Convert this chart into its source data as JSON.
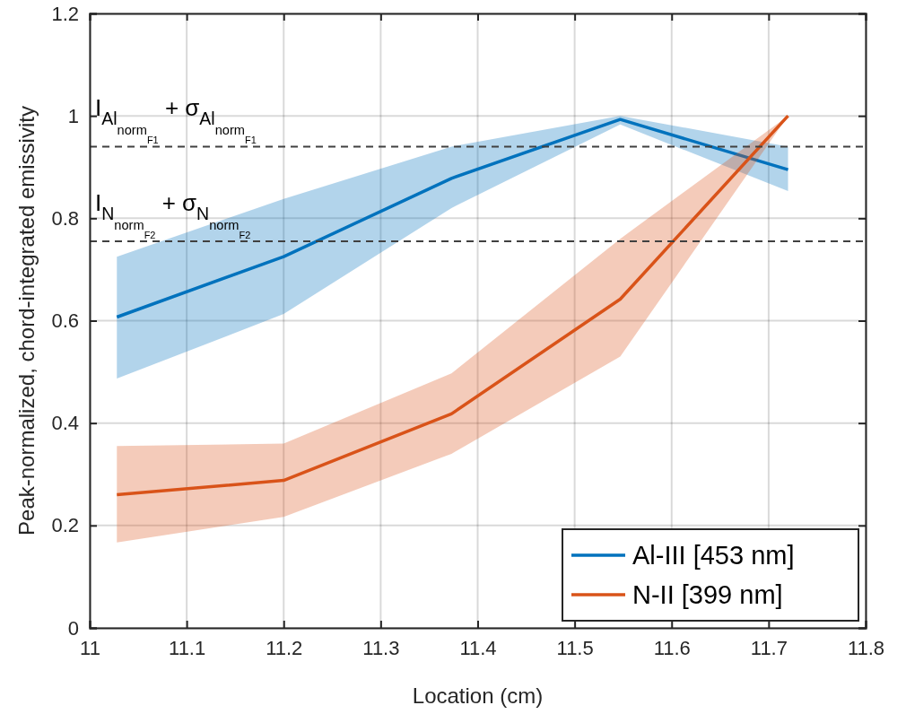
{
  "chart_data": {
    "type": "line",
    "xlabel": "Location (cm)",
    "ylabel": "Peak-normalized, chord-integrated emissivity",
    "xlim": [
      11,
      11.8
    ],
    "xticks": [
      11,
      11.1,
      11.2,
      11.3,
      11.4,
      11.5,
      11.6,
      11.7,
      11.8
    ],
    "ylim": [
      0,
      1.2
    ],
    "yticks": [
      0,
      0.2,
      0.4,
      0.6,
      0.8,
      1,
      1.2
    ],
    "grid": true,
    "legend": "bottom right",
    "x": [
      11.028,
      11.2,
      11.373,
      11.547,
      11.72
    ],
    "series": [
      {
        "name": "Al-III [453 nm]",
        "color": "#0072bd",
        "values": [
          0.607,
          0.725,
          0.878,
          0.993,
          0.895
        ],
        "lower": [
          0.487,
          0.613,
          0.82,
          0.983,
          0.853
        ],
        "upper": [
          0.725,
          0.838,
          0.94,
          1.0,
          0.94
        ]
      },
      {
        "name": "N-II [399 nm]",
        "color": "#d95319",
        "values": [
          0.26,
          0.288,
          0.418,
          0.642,
          1.0
        ],
        "lower": [
          0.167,
          0.217,
          0.34,
          0.53,
          1.0
        ],
        "upper": [
          0.355,
          0.36,
          0.497,
          0.76,
          1.0
        ]
      }
    ],
    "ref_lines": [
      {
        "axis": "y",
        "value": 0.94,
        "color": "#404040",
        "line_style": "dashed",
        "label": "I$_{Al}$$_{norm}$$_{F1}$ + σ$_{Al}$$_{norm}$$_{F1}$"
      },
      {
        "axis": "y",
        "value": 0.755,
        "color": "#404040",
        "line_style": "dashed",
        "label": "I$_{N}$$_{norm}$$_{F2}$ + σ$_{N}$$_{norm}$$_{F2}$"
      }
    ]
  }
}
